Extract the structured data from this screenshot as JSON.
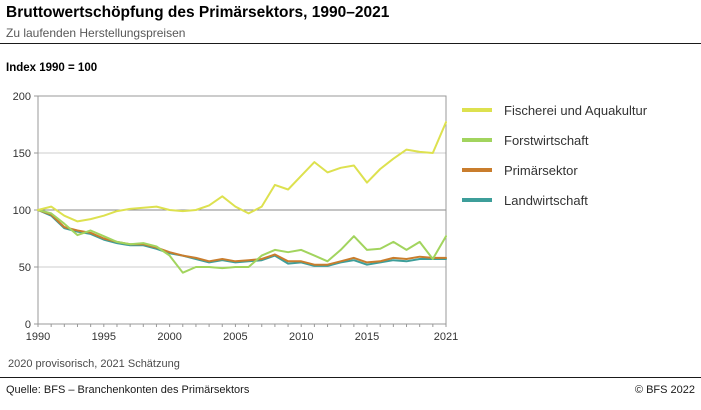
{
  "header": {
    "title": "Bruttowertschöpfung des Primärsektors, 1990–2021",
    "subtitle": "Zu laufenden Herstellungspreisen"
  },
  "chart": {
    "index_label": "Index 1990 = 100"
  },
  "chart_data": {
    "type": "line",
    "title": "Bruttowertschöpfung des Primärsektors, 1990–2021",
    "ylabel": "Index 1990 = 100",
    "xlabel": "",
    "ylim": [
      0,
      200
    ],
    "yticks": [
      0,
      50,
      100,
      150,
      200
    ],
    "xticks": [
      1990,
      1995,
      2000,
      2005,
      2010,
      2015,
      2021
    ],
    "grid": "horizontal",
    "legend_position": "right",
    "x": [
      1990,
      1991,
      1992,
      1993,
      1994,
      1995,
      1996,
      1997,
      1998,
      1999,
      2000,
      2001,
      2002,
      2003,
      2004,
      2005,
      2006,
      2007,
      2008,
      2009,
      2010,
      2011,
      2012,
      2013,
      2014,
      2015,
      2016,
      2017,
      2018,
      2019,
      2020,
      2021
    ],
    "series": [
      {
        "name": "Fischerei und Aquakultur",
        "color": "#dde14f",
        "values": [
          100,
          103,
          95,
          90,
          92,
          95,
          99,
          101,
          102,
          103,
          100,
          99,
          100,
          104,
          112,
          103,
          97,
          103,
          122,
          118,
          130,
          142,
          133,
          137,
          139,
          124,
          136,
          145,
          153,
          151,
          150,
          177
        ]
      },
      {
        "name": "Forstwirtschaft",
        "color": "#a2d45e",
        "values": [
          100,
          97,
          88,
          78,
          82,
          77,
          72,
          70,
          71,
          68,
          60,
          45,
          50,
          50,
          49,
          50,
          50,
          60,
          65,
          63,
          65,
          60,
          55,
          65,
          77,
          65,
          66,
          72,
          65,
          72,
          57,
          77
        ]
      },
      {
        "name": "Primärsektor",
        "color": "#c97d2d",
        "values": [
          100,
          96,
          85,
          82,
          80,
          75,
          72,
          70,
          70,
          67,
          63,
          60,
          58,
          55,
          57,
          55,
          56,
          57,
          61,
          55,
          55,
          52,
          52,
          55,
          58,
          54,
          55,
          58,
          57,
          59,
          58,
          58
        ]
      },
      {
        "name": "Landwirtschaft",
        "color": "#3d9e9a",
        "values": [
          100,
          95,
          84,
          81,
          79,
          74,
          71,
          69,
          69,
          66,
          62,
          60,
          57,
          54,
          56,
          54,
          55,
          56,
          60,
          53,
          54,
          51,
          51,
          54,
          56,
          52,
          54,
          56,
          55,
          57,
          57,
          57
        ]
      }
    ]
  },
  "footer": {
    "note": "2020 provisorisch, 2021 Schätzung",
    "source": "Quelle: BFS – Branchenkonten des Primärsektors",
    "copyright": "© BFS 2022"
  }
}
